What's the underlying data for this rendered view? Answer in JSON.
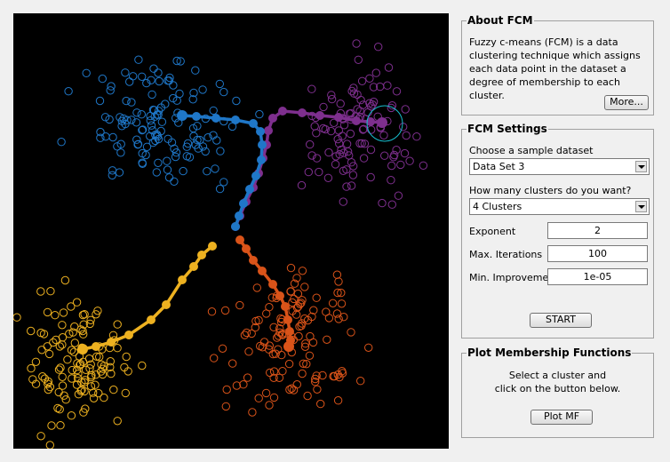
{
  "about": {
    "title": "About FCM",
    "text": "Fuzzy c-means (FCM) is a data clustering technique which assigns each data point in the dataset a degree of membership to each cluster.",
    "more_button": "More..."
  },
  "settings": {
    "title": "FCM Settings",
    "dataset_label": "Choose a sample dataset",
    "dataset_value": "Data Set 3",
    "clusters_label": "How many clusters do you want?",
    "clusters_value": "4 Clusters",
    "exponent_label": "Exponent",
    "exponent_value": "2",
    "max_iter_label": "Max. Iterations",
    "max_iter_value": "100",
    "min_improve_label": "Min. Improvement",
    "min_improve_value": "1e-05",
    "start_button": "START"
  },
  "plotmf": {
    "title": "Plot Membership Functions",
    "line1": "Select a cluster and",
    "line2": "click on the button below.",
    "button": "Plot MF"
  },
  "colors": {
    "blue": "#1f77c8",
    "purple": "#7e2f8e",
    "orange": "#d95319",
    "yellow": "#edb120",
    "cyan": "#17becf"
  }
}
